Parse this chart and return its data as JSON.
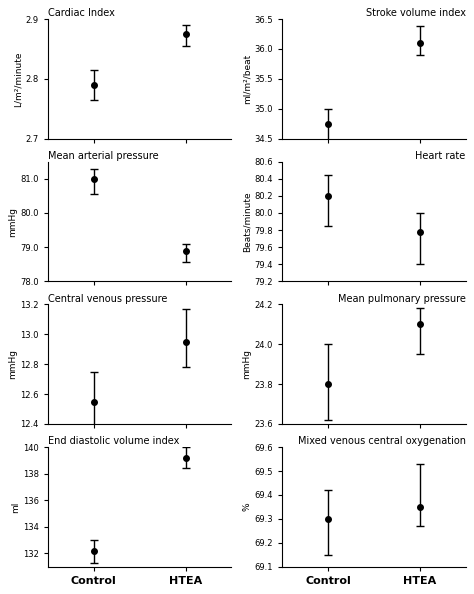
{
  "panels": [
    {
      "title": "Cardiac Index",
      "ylabel": "L/m²/minute",
      "ylim": [
        2.7,
        2.9
      ],
      "yticks": [
        2.7,
        2.8,
        2.9
      ],
      "ytick_labels": [
        "2.7",
        "2.8",
        "2.9"
      ],
      "title_loc": "left",
      "control_mean": 2.79,
      "control_err_up": 0.025,
      "control_err_dn": 0.025,
      "htea_mean": 2.875,
      "htea_err_up": 0.015,
      "htea_err_dn": 0.02
    },
    {
      "title": "Stroke volume index",
      "ylabel": "ml/m²/beat",
      "ylim": [
        34.5,
        36.5
      ],
      "yticks": [
        34.5,
        35.0,
        35.5,
        36.0,
        36.5
      ],
      "ytick_labels": [
        "34.5",
        "35.0",
        "35.5",
        "36.0",
        "36.5"
      ],
      "title_loc": "right",
      "control_mean": 34.75,
      "control_err_up": 0.25,
      "control_err_dn": 0.28,
      "htea_mean": 36.1,
      "htea_err_up": 0.28,
      "htea_err_dn": 0.2
    },
    {
      "title": "Mean arterial pressure",
      "ylabel": "mmHg",
      "ylim": [
        78.0,
        81.5
      ],
      "yticks": [
        78.0,
        79.0,
        80.0,
        81.0
      ],
      "ytick_labels": [
        "78.0",
        "79.0",
        "80.0",
        "81.0"
      ],
      "title_loc": "left",
      "control_mean": 81.0,
      "control_err_up": 0.3,
      "control_err_dn": 0.45,
      "htea_mean": 78.9,
      "htea_err_up": 0.2,
      "htea_err_dn": 0.35
    },
    {
      "title": "Heart rate",
      "ylabel": "Beats/minute",
      "ylim": [
        79.2,
        80.6
      ],
      "yticks": [
        79.2,
        79.4,
        79.6,
        79.8,
        80.0,
        80.2,
        80.4,
        80.6
      ],
      "ytick_labels": [
        "79.2",
        "79.4",
        "79.6",
        "79.8",
        "80.0",
        "80.2",
        "80.4",
        "80.6"
      ],
      "title_loc": "right",
      "control_mean": 80.2,
      "control_err_up": 0.25,
      "control_err_dn": 0.35,
      "htea_mean": 79.78,
      "htea_err_up": 0.22,
      "htea_err_dn": 0.38
    },
    {
      "title": "Central venous pressure",
      "ylabel": "mmHg",
      "ylim": [
        12.4,
        13.2
      ],
      "yticks": [
        12.4,
        12.6,
        12.8,
        13.0,
        13.2
      ],
      "ytick_labels": [
        "12.4",
        "12.6",
        "12.8",
        "13.0",
        "13.2"
      ],
      "title_loc": "left",
      "control_mean": 12.55,
      "control_err_up": 0.2,
      "control_err_dn": 0.18,
      "htea_mean": 12.95,
      "htea_err_up": 0.22,
      "htea_err_dn": 0.17
    },
    {
      "title": "Mean pulmonary pressure",
      "ylabel": "mmHg",
      "ylim": [
        23.6,
        24.2
      ],
      "yticks": [
        23.6,
        23.8,
        24.0,
        24.2
      ],
      "ytick_labels": [
        "23.6",
        "23.8",
        "24.0",
        "24.2"
      ],
      "title_loc": "right",
      "control_mean": 23.8,
      "control_err_up": 0.2,
      "control_err_dn": 0.18,
      "htea_mean": 24.1,
      "htea_err_up": 0.08,
      "htea_err_dn": 0.15
    },
    {
      "title": "End diastolic volume index",
      "ylabel": "ml",
      "ylim": [
        131,
        140
      ],
      "yticks": [
        132,
        134,
        136,
        138,
        140
      ],
      "ytick_labels": [
        "132",
        "134",
        "136",
        "138",
        "140"
      ],
      "title_loc": "left",
      "control_mean": 132.2,
      "control_err_up": 0.8,
      "control_err_dn": 0.9,
      "htea_mean": 139.2,
      "htea_err_up": 0.8,
      "htea_err_dn": 0.8
    },
    {
      "title": "Mixed venous central oxygenation",
      "ylabel": "%",
      "ylim": [
        69.1,
        69.6
      ],
      "yticks": [
        69.1,
        69.2,
        69.3,
        69.4,
        69.5,
        69.6
      ],
      "ytick_labels": [
        "69.1",
        "69.2",
        "69.3",
        "69.4",
        "69.5",
        "69.6"
      ],
      "title_loc": "right",
      "control_mean": 69.3,
      "control_err_up": 0.12,
      "control_err_dn": 0.15,
      "htea_mean": 69.35,
      "htea_err_up": 0.18,
      "htea_err_dn": 0.08
    }
  ],
  "xtick_labels": [
    "Control",
    "HTEA"
  ],
  "marker_color": "black",
  "marker_size": 4,
  "capsize": 3,
  "elinewidth": 1.0,
  "ecolor": "black",
  "background_color": "white"
}
